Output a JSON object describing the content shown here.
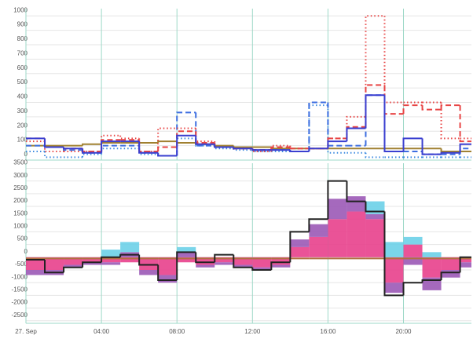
{
  "chart_data": [
    {
      "type": "line",
      "x": [
        0,
        1,
        2,
        3,
        4,
        5,
        6,
        7,
        8,
        9,
        10,
        11,
        12,
        13,
        14,
        15,
        16,
        17,
        18,
        19,
        20,
        21,
        22,
        23
      ],
      "xlim": [
        0,
        23.6
      ],
      "xticks": [
        {
          "value": 0,
          "label": "27. Sep"
        },
        {
          "value": 4,
          "label": "04:00"
        },
        {
          "value": 8,
          "label": "08:00"
        },
        {
          "value": 12,
          "label": "12:00"
        },
        {
          "value": 16,
          "label": "16:00"
        },
        {
          "value": 20,
          "label": "20:00"
        }
      ],
      "ylim": [
        0,
        1050
      ],
      "yticks": [
        0,
        100,
        200,
        300,
        400,
        500,
        600,
        700,
        800,
        900,
        1000
      ],
      "grid": true,
      "series": [
        {
          "color": "#a08030",
          "dash": "solid",
          "values": [
            100,
            100,
            100,
            110,
            120,
            120,
            120,
            130,
            120,
            110,
            100,
            90,
            90,
            80,
            80,
            80,
            80,
            80,
            80,
            80,
            80,
            80,
            60,
            60
          ]
        },
        {
          "color": "#3d8be0",
          "dash": "dotted",
          "values": [
            60,
            20,
            20,
            40,
            80,
            80,
            40,
            30,
            150,
            100,
            80,
            70,
            60,
            60,
            60,
            380,
            50,
            50,
            20,
            20,
            20,
            20,
            20,
            20
          ]
        },
        {
          "color": "#3d6ee0",
          "dash": "dashed",
          "values": [
            100,
            90,
            70,
            50,
            100,
            100,
            50,
            30,
            330,
            100,
            90,
            80,
            70,
            70,
            60,
            400,
            100,
            100,
            450,
            60,
            60,
            40,
            40,
            80
          ]
        },
        {
          "color": "#e84545",
          "dash": "dotted",
          "values": [
            130,
            60,
            60,
            60,
            170,
            150,
            60,
            220,
            220,
            130,
            90,
            80,
            60,
            100,
            80,
            80,
            150,
            300,
            1000,
            400,
            400,
            400,
            150,
            150
          ]
        },
        {
          "color": "#e84545",
          "dash": "dashed",
          "values": [
            150,
            90,
            80,
            60,
            140,
            140,
            60,
            90,
            200,
            120,
            90,
            80,
            70,
            90,
            80,
            80,
            150,
            230,
            520,
            320,
            380,
            350,
            380,
            130
          ]
        },
        {
          "color": "#3a3fd0",
          "dash": "solid",
          "values": [
            150,
            90,
            80,
            50,
            130,
            130,
            50,
            30,
            170,
            110,
            90,
            80,
            70,
            70,
            60,
            80,
            130,
            220,
            450,
            60,
            150,
            40,
            50,
            110
          ]
        }
      ]
    },
    {
      "type": "area",
      "x": [
        0,
        1,
        2,
        3,
        4,
        5,
        6,
        7,
        8,
        9,
        10,
        11,
        12,
        13,
        14,
        15,
        16,
        17,
        18,
        19,
        20,
        21,
        22,
        23
      ],
      "xlim": [
        0,
        23.6
      ],
      "xticks": [
        {
          "value": 0,
          "label": "27. Sep"
        },
        {
          "value": 4,
          "label": "04:00"
        },
        {
          "value": 8,
          "label": "08:00"
        },
        {
          "value": 12,
          "label": "12:00"
        },
        {
          "value": 16,
          "label": "16:00"
        },
        {
          "value": 20,
          "label": "20:00"
        }
      ],
      "ylim": [
        -2600,
        3700
      ],
      "yticks": [
        -2500,
        -2000,
        -1500,
        -1000,
        -500,
        0,
        500,
        1000,
        1500,
        2000,
        2500,
        3000,
        3500
      ],
      "grid": true,
      "series": [
        {
          "color": "#e8408c",
          "values": [
            -500,
            -500,
            -300,
            -200,
            -200,
            -200,
            -500,
            -700,
            -200,
            -300,
            -200,
            -300,
            -400,
            -300,
            400,
            800,
            1500,
            1800,
            1500,
            -1000,
            500,
            -800,
            -500,
            -200
          ]
        },
        {
          "color": "#9b59b6",
          "values": [
            -200,
            -200,
            -100,
            -100,
            -100,
            200,
            -200,
            -300,
            200,
            -100,
            -100,
            -100,
            -100,
            -100,
            300,
            500,
            800,
            600,
            200,
            -400,
            -300,
            -500,
            -300,
            -200
          ]
        },
        {
          "color": "#6cd0e8",
          "values": [
            0,
            0,
            0,
            0,
            300,
            400,
            0,
            0,
            200,
            0,
            0,
            0,
            0,
            0,
            0,
            0,
            0,
            0,
            500,
            600,
            300,
            200,
            0,
            0
          ]
        }
      ],
      "lines": [
        {
          "color": "#b07040",
          "values": [
            -50,
            -50,
            -50,
            -50,
            -50,
            -50,
            -50,
            -50,
            -50,
            -50,
            -50,
            -50,
            -50,
            -50,
            -50,
            -50,
            -50,
            -50,
            -50,
            -50,
            -50,
            -50,
            -50,
            -50
          ]
        },
        {
          "color": "#222222",
          "values": [
            -100,
            -600,
            -400,
            -200,
            0,
            100,
            -300,
            -900,
            200,
            -200,
            100,
            -400,
            -500,
            -200,
            1000,
            1500,
            3000,
            2200,
            1800,
            -1500,
            -1000,
            -900,
            -600,
            0
          ]
        }
      ]
    }
  ]
}
